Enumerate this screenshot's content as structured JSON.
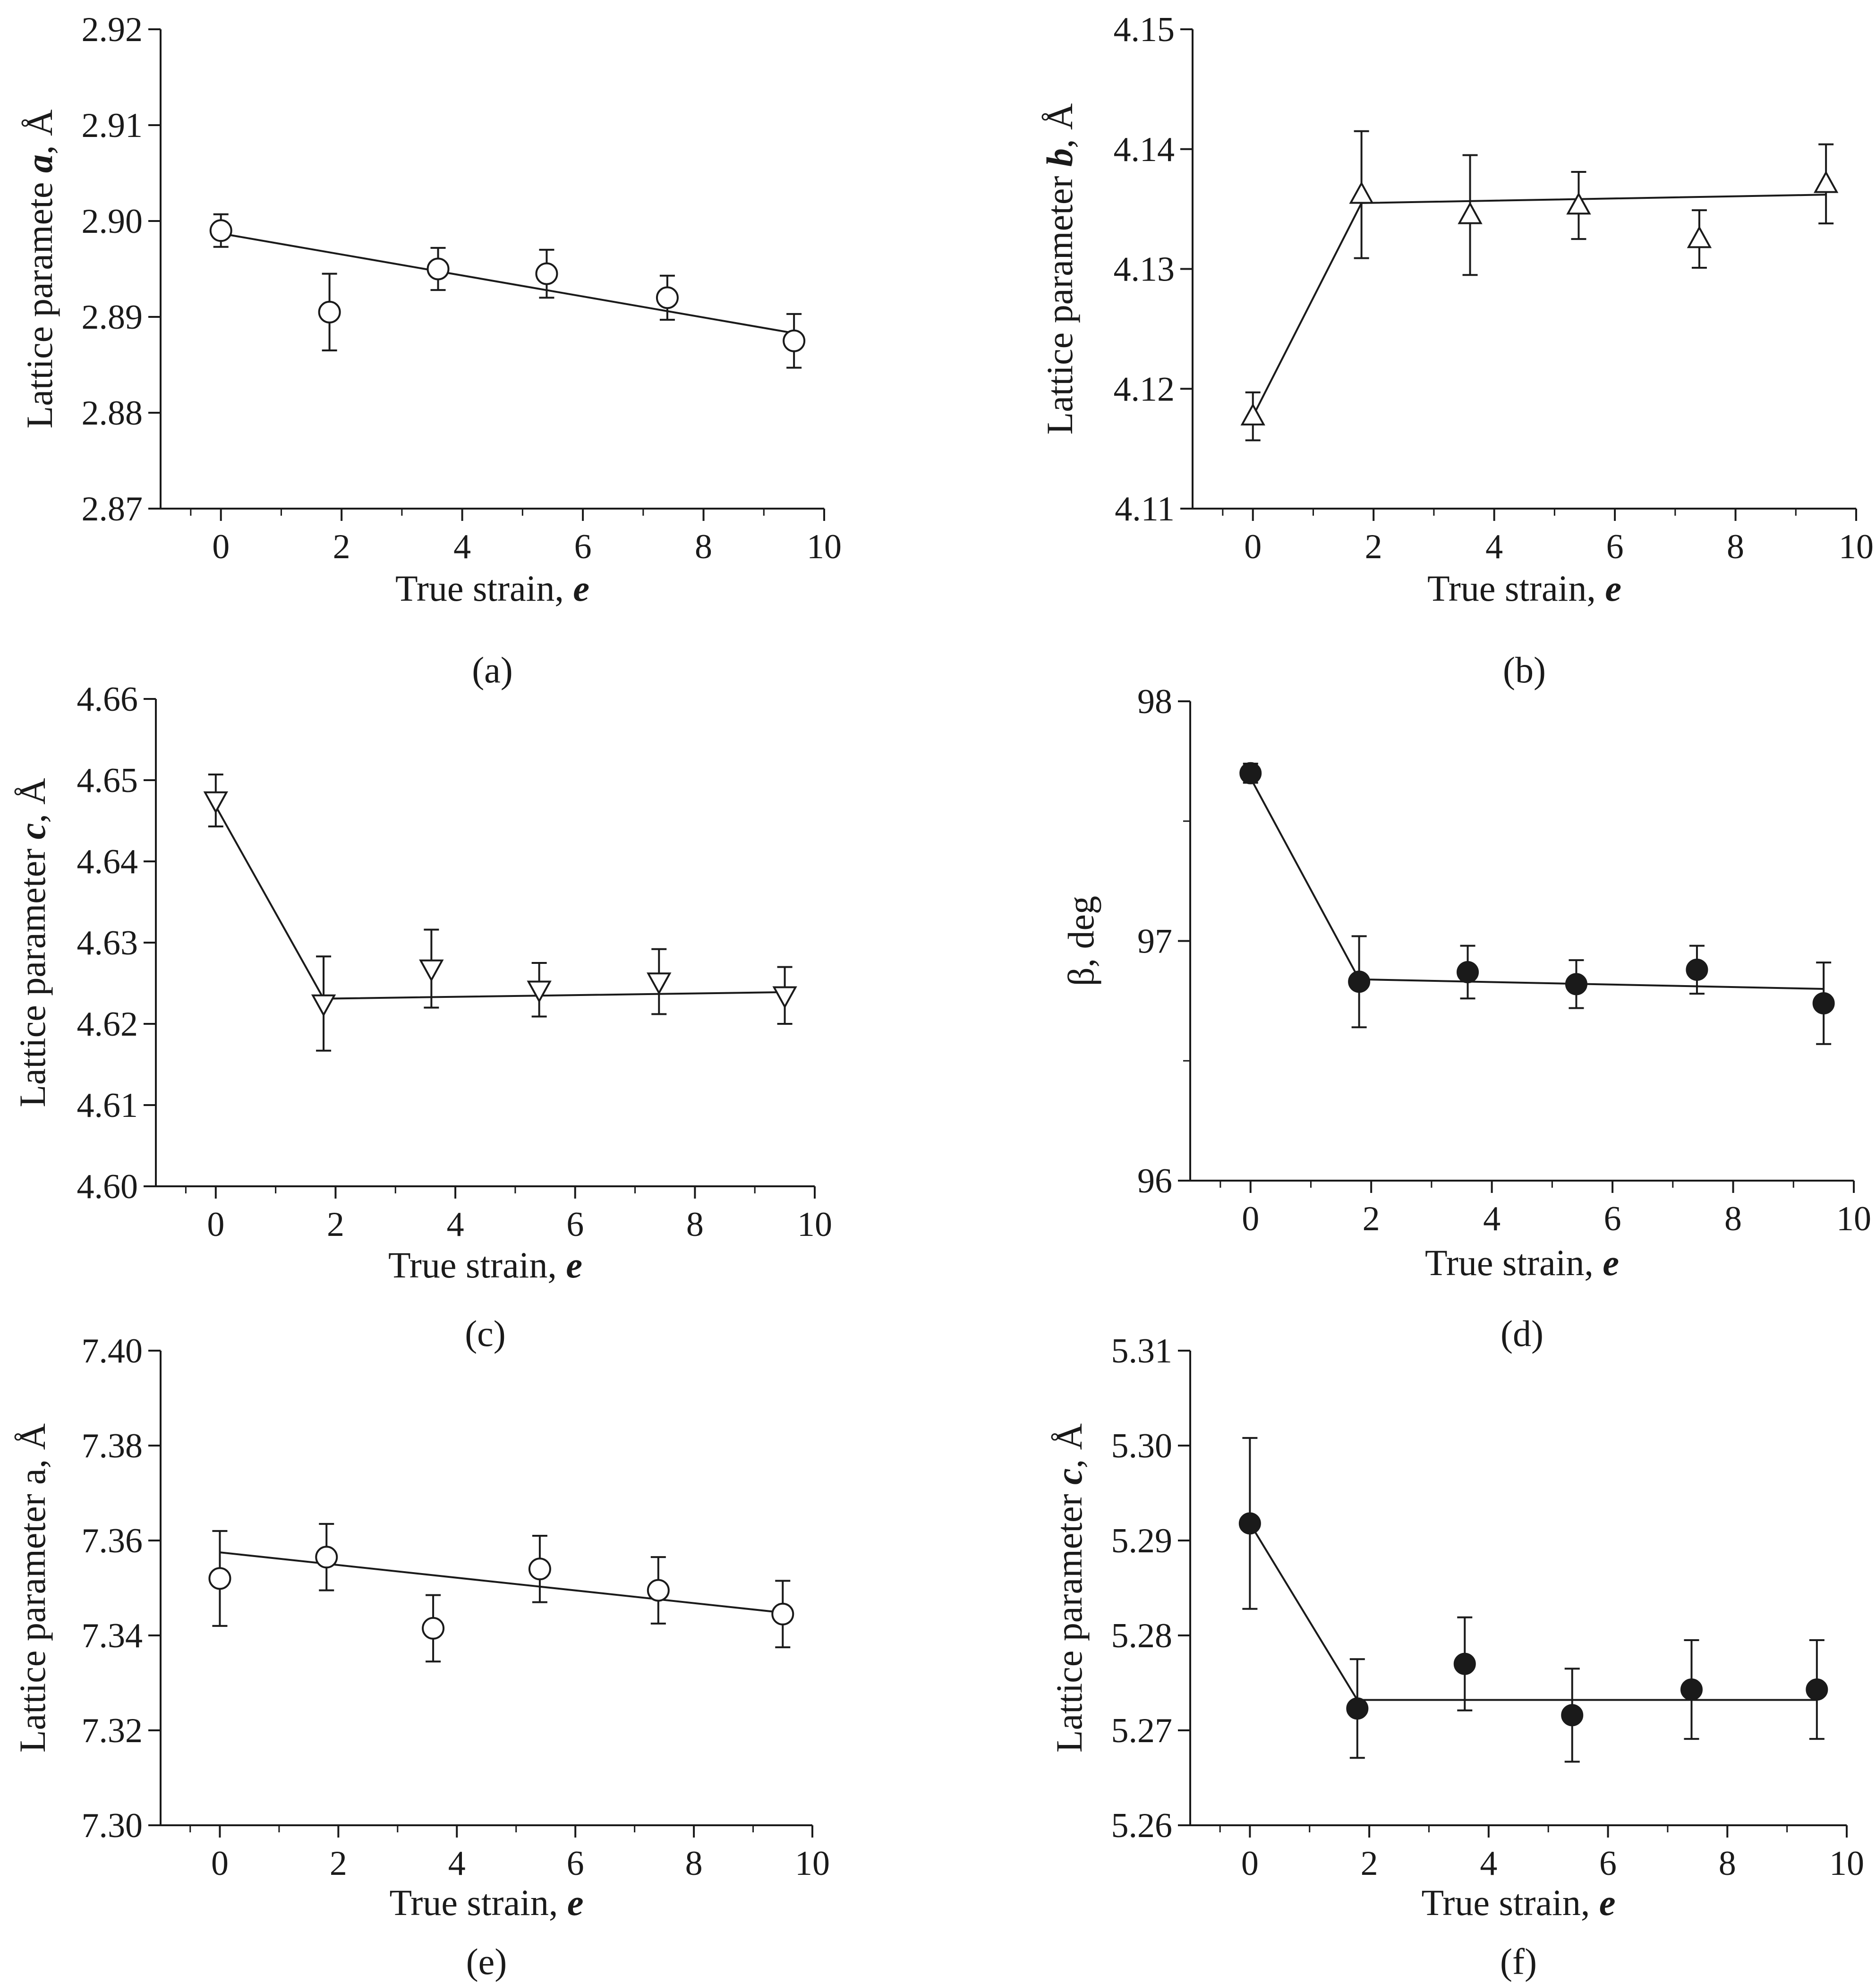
{
  "chart_data": [
    {
      "type": "scatter",
      "panel_label": "(a)",
      "ylabel": "Lattice paramete a, Å",
      "ylabel_parts": [
        {
          "text": "Lattice paramete ",
          "style": "normal"
        },
        {
          "text": "a",
          "style": "bold-italic"
        },
        {
          "text": ", Å",
          "style": "normal"
        }
      ],
      "xlabel_parts": [
        {
          "text": "True strain, ",
          "style": "normal"
        },
        {
          "text": "e",
          "style": "bold-italic"
        }
      ],
      "xlim": [
        -1,
        10
      ],
      "xticks": [
        0,
        2,
        4,
        6,
        8,
        10
      ],
      "xtick_labels": [
        "0",
        "2",
        "4",
        "6",
        "8",
        "10"
      ],
      "ylim": [
        2.87,
        2.92
      ],
      "yticks": [
        2.87,
        2.88,
        2.89,
        2.9,
        2.91,
        2.92
      ],
      "ytick_labels": [
        "2.87",
        "2.88",
        "2.89",
        "2.90",
        "2.91",
        "2.92"
      ],
      "marker": "circle-open",
      "points": [
        {
          "x": 0.0,
          "y": 2.899,
          "err": 0.0017
        },
        {
          "x": 1.8,
          "y": 2.8905,
          "err": 0.004
        },
        {
          "x": 3.6,
          "y": 2.895,
          "err": 0.0022
        },
        {
          "x": 5.4,
          "y": 2.8945,
          "err": 0.0025
        },
        {
          "x": 7.4,
          "y": 2.892,
          "err": 0.0023
        },
        {
          "x": 9.5,
          "y": 2.8875,
          "err": 0.0028
        }
      ],
      "fit": [
        [
          0.0,
          2.8987
        ],
        [
          9.5,
          2.8883
        ]
      ]
    },
    {
      "type": "scatter",
      "panel_label": "(b)",
      "ylabel": "Lattice parameter b, Å",
      "ylabel_parts": [
        {
          "text": "Lattice parameter ",
          "style": "normal"
        },
        {
          "text": "b",
          "style": "bold-italic"
        },
        {
          "text": ", Å",
          "style": "normal"
        }
      ],
      "xlabel_parts": [
        {
          "text": "True strain, ",
          "style": "normal"
        },
        {
          "text": "e",
          "style": "bold-italic"
        }
      ],
      "xlim": [
        -1,
        10
      ],
      "xticks": [
        0,
        2,
        4,
        6,
        8,
        10
      ],
      "xtick_labels": [
        "0",
        "2",
        "4",
        "6",
        "8",
        "10"
      ],
      "ylim": [
        4.11,
        4.15
      ],
      "yticks": [
        4.11,
        4.12,
        4.13,
        4.14,
        4.15
      ],
      "ytick_labels": [
        "4.11",
        "4.12",
        "4.13",
        "4.14",
        "4.15"
      ],
      "marker": "triangle-up-open",
      "points": [
        {
          "x": 0.0,
          "y": 4.1177,
          "err": 0.002
        },
        {
          "x": 1.8,
          "y": 4.1362,
          "err": 0.0053
        },
        {
          "x": 3.6,
          "y": 4.1345,
          "err": 0.005
        },
        {
          "x": 5.4,
          "y": 4.1353,
          "err": 0.0028
        },
        {
          "x": 7.4,
          "y": 4.1325,
          "err": 0.0024
        },
        {
          "x": 9.5,
          "y": 4.1371,
          "err": 0.0033
        }
      ],
      "fit": [
        [
          0.0,
          4.1177
        ],
        [
          1.8,
          4.1355
        ],
        [
          9.5,
          4.1362
        ]
      ]
    },
    {
      "type": "scatter",
      "panel_label": "(c)",
      "ylabel": "Lattice parameter c, Å",
      "ylabel_parts": [
        {
          "text": "Lattice parameter ",
          "style": "normal"
        },
        {
          "text": "c",
          "style": "bold-italic"
        },
        {
          "text": ", Å",
          "style": "normal"
        }
      ],
      "xlabel_parts": [
        {
          "text": "True strain, ",
          "style": "normal"
        },
        {
          "text": "e",
          "style": "bold-italic"
        }
      ],
      "xlim": [
        -1,
        10
      ],
      "xticks": [
        0,
        2,
        4,
        6,
        8,
        10
      ],
      "xtick_labels": [
        "0",
        "2",
        "4",
        "6",
        "8",
        "10"
      ],
      "ylim": [
        4.6,
        4.66
      ],
      "yticks": [
        4.6,
        4.61,
        4.62,
        4.63,
        4.64,
        4.65,
        4.66
      ],
      "ytick_labels": [
        "4.60",
        "4.61",
        "4.62",
        "4.63",
        "4.64",
        "4.65",
        "4.66"
      ],
      "marker": "triangle-down-open",
      "points": [
        {
          "x": 0.0,
          "y": 4.6475,
          "err": 0.0032
        },
        {
          "x": 1.8,
          "y": 4.6225,
          "err": 0.0058
        },
        {
          "x": 3.6,
          "y": 4.6268,
          "err": 0.0048
        },
        {
          "x": 5.4,
          "y": 4.6242,
          "err": 0.0033
        },
        {
          "x": 7.4,
          "y": 4.6252,
          "err": 0.004
        },
        {
          "x": 9.5,
          "y": 4.6235,
          "err": 0.0035
        }
      ],
      "fit": [
        [
          0.0,
          4.6468
        ],
        [
          1.8,
          4.6231
        ],
        [
          9.5,
          4.6239
        ]
      ]
    },
    {
      "type": "scatter",
      "panel_label": "(d)",
      "ylabel": "β, deg",
      "ylabel_parts": [
        {
          "text": "β, deg",
          "style": "normal"
        }
      ],
      "xlabel_parts": [
        {
          "text": "True strain, ",
          "style": "normal"
        },
        {
          "text": "e",
          "style": "bold-italic"
        }
      ],
      "xlim": [
        -1,
        10
      ],
      "xticks": [
        0,
        2,
        4,
        6,
        8,
        10
      ],
      "xtick_labels": [
        "0",
        "2",
        "4",
        "6",
        "8",
        "10"
      ],
      "ylim": [
        96,
        98
      ],
      "yticks": [
        96,
        97,
        98
      ],
      "ytick_labels": [
        "96",
        "97",
        "98"
      ],
      "minor_yticks": [
        96.5,
        97.5
      ],
      "marker": "circle-filled",
      "points": [
        {
          "x": 0.0,
          "y": 97.7,
          "err": 0.04
        },
        {
          "x": 1.8,
          "y": 96.83,
          "err": 0.19
        },
        {
          "x": 3.6,
          "y": 96.87,
          "err": 0.11
        },
        {
          "x": 5.4,
          "y": 96.82,
          "err": 0.1
        },
        {
          "x": 7.4,
          "y": 96.88,
          "err": 0.1
        },
        {
          "x": 9.5,
          "y": 96.74,
          "err": 0.17
        }
      ],
      "fit": [
        [
          0.0,
          97.68
        ],
        [
          1.8,
          96.84
        ],
        [
          9.5,
          96.8
        ]
      ]
    },
    {
      "type": "scatter",
      "panel_label": "(e)",
      "ylabel": "Lattice parameter a, Å",
      "ylabel_parts": [
        {
          "text": "Lattice parameter a, Å",
          "style": "normal"
        }
      ],
      "xlabel_parts": [
        {
          "text": "True strain, ",
          "style": "normal"
        },
        {
          "text": "e",
          "style": "bold-italic"
        }
      ],
      "xlim": [
        -1,
        10
      ],
      "xticks": [
        0,
        2,
        4,
        6,
        8,
        10
      ],
      "xtick_labels": [
        "0",
        "2",
        "4",
        "6",
        "8",
        "10"
      ],
      "ylim": [
        7.3,
        7.4
      ],
      "yticks": [
        7.3,
        7.32,
        7.34,
        7.36,
        7.38,
        7.4
      ],
      "ytick_labels": [
        "7.30",
        "7.32",
        "7.34",
        "7.36",
        "7.38",
        "7.40"
      ],
      "marker": "circle-open",
      "points": [
        {
          "x": 0.0,
          "y": 7.352,
          "err": 0.01
        },
        {
          "x": 1.8,
          "y": 7.3565,
          "err": 0.007
        },
        {
          "x": 3.6,
          "y": 7.3415,
          "err": 0.007
        },
        {
          "x": 5.4,
          "y": 7.354,
          "err": 0.007
        },
        {
          "x": 7.4,
          "y": 7.3495,
          "err": 0.007
        },
        {
          "x": 9.5,
          "y": 7.3445,
          "err": 0.007
        }
      ],
      "fit": [
        [
          0.0,
          7.3575
        ],
        [
          9.5,
          7.3448
        ]
      ]
    },
    {
      "type": "scatter",
      "panel_label": "(f)",
      "ylabel": "Lattice parameter c, Å",
      "ylabel_parts": [
        {
          "text": "Lattice parameter ",
          "style": "normal"
        },
        {
          "text": "c",
          "style": "bold-italic"
        },
        {
          "text": ", Å",
          "style": "normal"
        }
      ],
      "xlabel_parts": [
        {
          "text": "True strain, ",
          "style": "normal"
        },
        {
          "text": "e",
          "style": "bold-italic"
        }
      ],
      "xlim": [
        -1,
        10
      ],
      "xticks": [
        0,
        2,
        4,
        6,
        8,
        10
      ],
      "xtick_labels": [
        "0",
        "2",
        "4",
        "6",
        "8",
        "10"
      ],
      "ylim": [
        5.26,
        5.31
      ],
      "yticks": [
        5.26,
        5.27,
        5.28,
        5.29,
        5.3,
        5.31
      ],
      "ytick_labels": [
        "5.26",
        "5.27",
        "5.28",
        "5.29",
        "5.30",
        "5.31"
      ],
      "marker": "circle-filled",
      "points": [
        {
          "x": 0.0,
          "y": 5.2918,
          "err": 0.009
        },
        {
          "x": 1.8,
          "y": 5.2723,
          "err": 0.0052
        },
        {
          "x": 3.6,
          "y": 5.277,
          "err": 0.0049
        },
        {
          "x": 5.4,
          "y": 5.2716,
          "err": 0.0049
        },
        {
          "x": 7.4,
          "y": 5.2743,
          "err": 0.0052
        },
        {
          "x": 9.5,
          "y": 5.2743,
          "err": 0.0052
        }
      ],
      "fit": [
        [
          0.0,
          5.2918
        ],
        [
          1.8,
          5.2732
        ],
        [
          9.5,
          5.2732
        ]
      ]
    }
  ]
}
